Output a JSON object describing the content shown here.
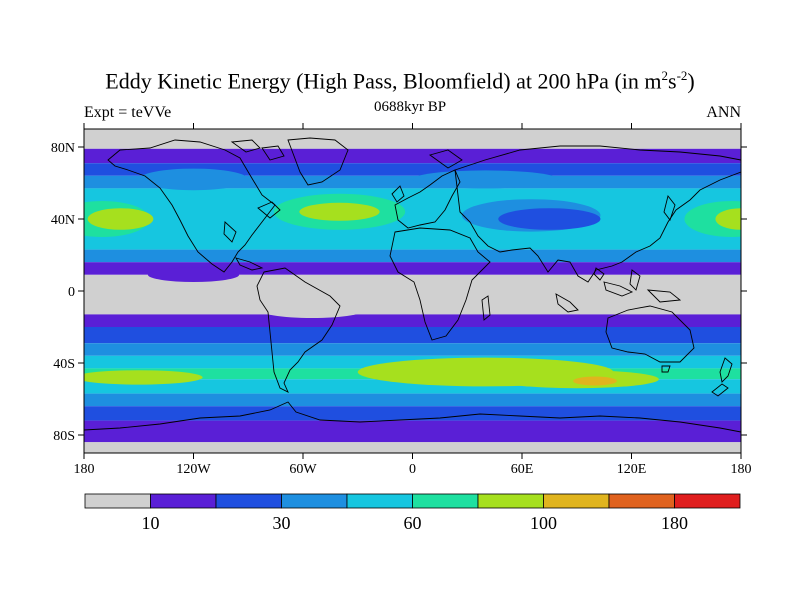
{
  "title": {
    "main": "Eddy Kinetic Energy (High Pass, Bloomfield) at 200 hPa (in m",
    "sup1": "2",
    "mid": "s",
    "sup2": "-2",
    "end": ")"
  },
  "subtitle": "0688kyr BP",
  "left_label": "Expt = teVVe",
  "right_label": "ANN",
  "chart_data": {
    "type": "heatmap",
    "projection": "cylindrical equidistant",
    "xlim": [
      -180,
      180
    ],
    "ylim": [
      -90,
      90
    ],
    "x_ticks": [
      {
        "value": -180,
        "label": "180"
      },
      {
        "value": -120,
        "label": "120W"
      },
      {
        "value": -60,
        "label": "60W"
      },
      {
        "value": 0,
        "label": "0"
      },
      {
        "value": 60,
        "label": "60E"
      },
      {
        "value": 120,
        "label": "120E"
      },
      {
        "value": 180,
        "label": "180"
      }
    ],
    "y_ticks": [
      {
        "value": 80,
        "label": "80N"
      },
      {
        "value": 40,
        "label": "40N"
      },
      {
        "value": 0,
        "label": "0"
      },
      {
        "value": -40,
        "label": "40S"
      },
      {
        "value": -80,
        "label": "80S"
      }
    ],
    "colorbar": {
      "colors": [
        "#d0d0d0",
        "#5a1fd6",
        "#1f4fe0",
        "#1e8fe0",
        "#16c6e0",
        "#1ee0a0",
        "#a6e01e",
        "#e0b41e",
        "#e0621e",
        "#e01e1e"
      ],
      "labels": [
        {
          "after_box": 1,
          "text": "10"
        },
        {
          "after_box": 3,
          "text": "30"
        },
        {
          "after_box": 5,
          "text": "60"
        },
        {
          "after_box": 7,
          "text": "100"
        },
        {
          "after_box": 9,
          "text": "180"
        }
      ]
    },
    "field_bands": [
      {
        "lat_north": 90,
        "lat_south": 79,
        "level": 0
      },
      {
        "lat_north": 79,
        "lat_south": 71,
        "level": 1
      },
      {
        "lat_north": 71,
        "lat_south": 64,
        "level": 2
      },
      {
        "lat_north": 64,
        "lat_south": 57,
        "level": 3
      },
      {
        "lat_north": 57,
        "lat_south": 23,
        "level": 4
      },
      {
        "lat_north": 23,
        "lat_south": 16,
        "level": 3
      },
      {
        "lat_north": 16,
        "lat_south": 9,
        "level": 1
      },
      {
        "lat_north": 9,
        "lat_south": -13,
        "level": 0
      },
      {
        "lat_north": -13,
        "lat_south": -20,
        "level": 1
      },
      {
        "lat_north": -20,
        "lat_south": -29,
        "level": 2
      },
      {
        "lat_north": -29,
        "lat_south": -36,
        "level": 3
      },
      {
        "lat_north": -36,
        "lat_south": -43,
        "level": 4
      },
      {
        "lat_north": -43,
        "lat_south": -49,
        "level": 5
      },
      {
        "lat_north": -49,
        "lat_south": -57,
        "level": 4
      },
      {
        "lat_north": -57,
        "lat_south": -64,
        "level": 3
      },
      {
        "lat_north": -64,
        "lat_south": -72,
        "level": 2
      },
      {
        "lat_north": -72,
        "lat_south": -84,
        "level": 1
      },
      {
        "lat_north": -84,
        "lat_south": -90,
        "level": 0
      }
    ],
    "field_blobs": [
      {
        "lon": -170,
        "lat": 40,
        "rx_deg": 26,
        "ry_deg": 10,
        "level": 5
      },
      {
        "lon": 175,
        "lat": 40,
        "rx_deg": 26,
        "ry_deg": 10,
        "level": 5
      },
      {
        "lon": -160,
        "lat": 40,
        "rx_deg": 18,
        "ry_deg": 6,
        "level": 6
      },
      {
        "lon": 180,
        "lat": 40,
        "rx_deg": 14,
        "ry_deg": 6,
        "level": 6
      },
      {
        "lon": -40,
        "lat": 44,
        "rx_deg": 36,
        "ry_deg": 10,
        "level": 5
      },
      {
        "lon": -40,
        "lat": 44,
        "rx_deg": 22,
        "ry_deg": 5,
        "level": 6
      },
      {
        "lon": 65,
        "lat": 42,
        "rx_deg": 38,
        "ry_deg": 9,
        "level": 3
      },
      {
        "lon": 75,
        "lat": 40,
        "rx_deg": 28,
        "ry_deg": 6,
        "level": 2
      },
      {
        "lon": -120,
        "lat": 62,
        "rx_deg": 30,
        "ry_deg": 6,
        "level": 3
      },
      {
        "lon": 40,
        "lat": 62,
        "rx_deg": 40,
        "ry_deg": 5,
        "level": 3
      },
      {
        "lon": -120,
        "lat": 9,
        "rx_deg": 25,
        "ry_deg": 4,
        "level": 1
      },
      {
        "lon": -55,
        "lat": -10,
        "rx_deg": 30,
        "ry_deg": 5,
        "level": 0
      },
      {
        "lon": 40,
        "lat": -45,
        "rx_deg": 70,
        "ry_deg": 8,
        "level": 6
      },
      {
        "lon": 90,
        "lat": -49,
        "rx_deg": 45,
        "ry_deg": 5,
        "level": 6
      },
      {
        "lon": 100,
        "lat": -50,
        "rx_deg": 12,
        "ry_deg": 2.5,
        "level": 7
      },
      {
        "lon": -150,
        "lat": -48,
        "rx_deg": 35,
        "ry_deg": 4,
        "level": 6
      }
    ]
  }
}
